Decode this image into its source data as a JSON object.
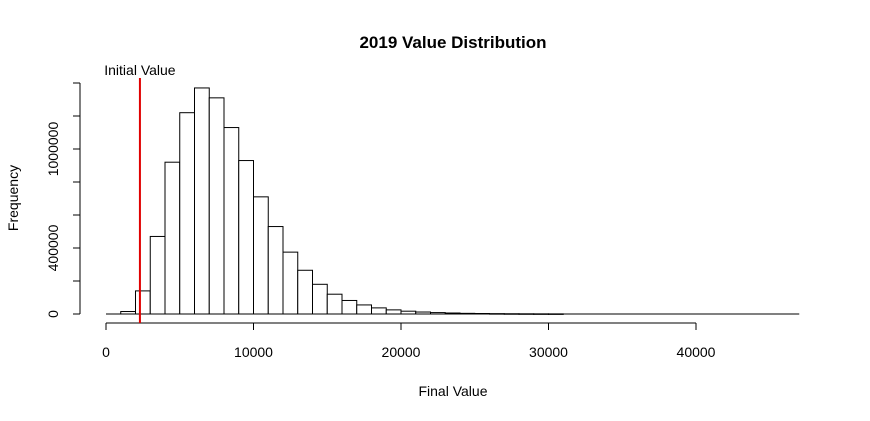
{
  "chart_data": {
    "type": "histogram",
    "title": "2019 Value Distribution",
    "xlabel": "Final Value",
    "ylabel": "Frequency",
    "xlim": [
      0,
      47000
    ],
    "ylim": [
      0,
      1400000
    ],
    "x_ticks": [
      0,
      10000,
      20000,
      30000,
      40000
    ],
    "x_tick_labels": [
      "0",
      "10000",
      "20000",
      "30000",
      "40000"
    ],
    "y_ticks": [
      0,
      400000,
      1000000
    ],
    "y_tick_labels": [
      "0",
      "400000",
      "1000000"
    ],
    "y_axis_extent": [
      0,
      1400000
    ],
    "bin_width": 1000,
    "bin_start": 1000,
    "values": [
      15000,
      140000,
      470000,
      920000,
      1220000,
      1370000,
      1310000,
      1130000,
      930000,
      710000,
      530000,
      375000,
      265000,
      180000,
      120000,
      82000,
      55000,
      37000,
      25000,
      17000,
      12000,
      8500,
      6000,
      4000,
      3000,
      2200,
      1600,
      1200,
      900,
      700
    ],
    "grid": false,
    "annotation": {
      "label": "Initial Value",
      "x": 2300,
      "color": "#e00000"
    },
    "colors": {
      "bar_fill": "#ffffff",
      "bar_stroke": "#000000",
      "annotation": "#e00000"
    }
  }
}
